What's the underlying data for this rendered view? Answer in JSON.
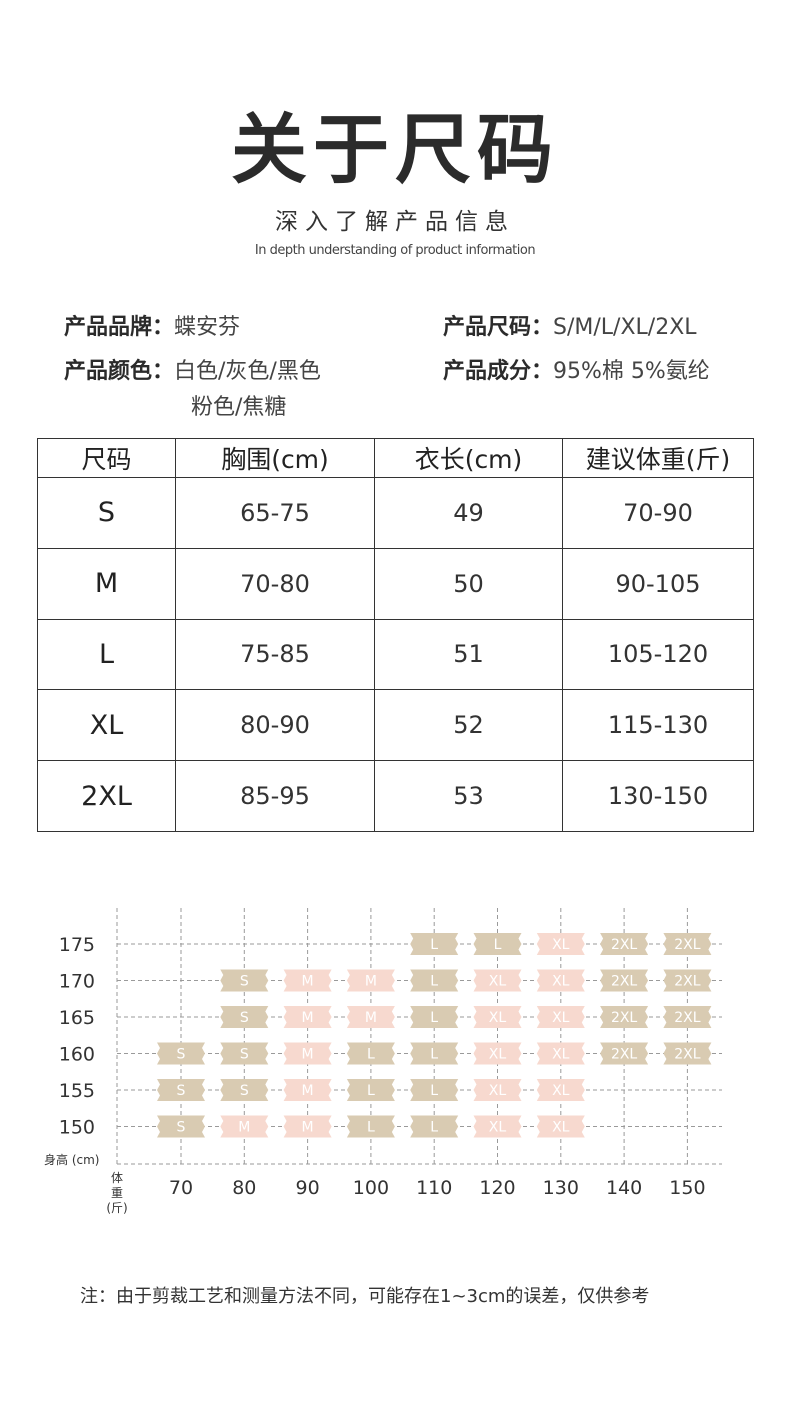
{
  "header": {
    "title": "关于尺码",
    "subtitle": "深入了解产品信息",
    "subtitle_en": "In depth understanding of product information"
  },
  "info": {
    "brand_label": "产品品牌：",
    "brand_value": "蝶安芬",
    "size_label": "产品尺码：",
    "size_value": "S/M/L/XL/2XL",
    "color_label": "产品颜色：",
    "color_value_line1": "白色/灰色/黑色",
    "color_value_line2": "粉色/焦糖",
    "material_label": "产品成分：",
    "material_value": "95%棉 5%氨纶"
  },
  "size_table": {
    "headers": [
      "尺码",
      "胸围(cm)",
      "衣长(cm)",
      "建议体重(斤)"
    ],
    "rows": [
      [
        "S",
        "65-75",
        "49",
        "70-90"
      ],
      [
        "M",
        "70-80",
        "50",
        "90-105"
      ],
      [
        "L",
        "75-85",
        "51",
        "105-120"
      ],
      [
        "XL",
        "80-90",
        "52",
        "115-130"
      ],
      [
        "2XL",
        "85-95",
        "53",
        "130-150"
      ]
    ]
  },
  "chart_data": {
    "type": "table",
    "title": "",
    "ylabel": "身高 (cm)",
    "xlabel": "体重(斤)",
    "xlabel_lines": [
      "体",
      "重",
      "(斤)"
    ],
    "x": [
      70,
      80,
      90,
      100,
      110,
      120,
      130,
      140,
      150
    ],
    "y": [
      175,
      170,
      165,
      160,
      155,
      150
    ],
    "grid": true,
    "colors": {
      "S": "#d9cbb2",
      "M": "#f7d9cf",
      "L": "#d9cbb2",
      "XL": "#f7d9cf",
      "2XL": "#d9cbb2"
    },
    "cells": [
      {
        "h": 175,
        "w": 110,
        "size": "L"
      },
      {
        "h": 175,
        "w": 120,
        "size": "L"
      },
      {
        "h": 175,
        "w": 130,
        "size": "XL"
      },
      {
        "h": 175,
        "w": 140,
        "size": "2XL"
      },
      {
        "h": 175,
        "w": 150,
        "size": "2XL"
      },
      {
        "h": 170,
        "w": 80,
        "size": "S"
      },
      {
        "h": 170,
        "w": 90,
        "size": "M"
      },
      {
        "h": 170,
        "w": 100,
        "size": "M"
      },
      {
        "h": 170,
        "w": 110,
        "size": "L"
      },
      {
        "h": 170,
        "w": 120,
        "size": "XL"
      },
      {
        "h": 170,
        "w": 130,
        "size": "XL"
      },
      {
        "h": 170,
        "w": 140,
        "size": "2XL"
      },
      {
        "h": 170,
        "w": 150,
        "size": "2XL"
      },
      {
        "h": 165,
        "w": 80,
        "size": "S"
      },
      {
        "h": 165,
        "w": 90,
        "size": "M"
      },
      {
        "h": 165,
        "w": 100,
        "size": "M"
      },
      {
        "h": 165,
        "w": 110,
        "size": "L"
      },
      {
        "h": 165,
        "w": 120,
        "size": "XL"
      },
      {
        "h": 165,
        "w": 130,
        "size": "XL"
      },
      {
        "h": 165,
        "w": 140,
        "size": "2XL"
      },
      {
        "h": 165,
        "w": 150,
        "size": "2XL"
      },
      {
        "h": 160,
        "w": 70,
        "size": "S"
      },
      {
        "h": 160,
        "w": 80,
        "size": "S"
      },
      {
        "h": 160,
        "w": 90,
        "size": "M"
      },
      {
        "h": 160,
        "w": 100,
        "size": "L"
      },
      {
        "h": 160,
        "w": 110,
        "size": "L"
      },
      {
        "h": 160,
        "w": 120,
        "size": "XL"
      },
      {
        "h": 160,
        "w": 130,
        "size": "XL"
      },
      {
        "h": 160,
        "w": 140,
        "size": "2XL"
      },
      {
        "h": 160,
        "w": 150,
        "size": "2XL"
      },
      {
        "h": 155,
        "w": 70,
        "size": "S"
      },
      {
        "h": 155,
        "w": 80,
        "size": "S"
      },
      {
        "h": 155,
        "w": 90,
        "size": "M"
      },
      {
        "h": 155,
        "w": 100,
        "size": "L"
      },
      {
        "h": 155,
        "w": 110,
        "size": "L"
      },
      {
        "h": 155,
        "w": 120,
        "size": "XL"
      },
      {
        "h": 155,
        "w": 130,
        "size": "XL"
      },
      {
        "h": 150,
        "w": 70,
        "size": "S"
      },
      {
        "h": 150,
        "w": 80,
        "size": "M"
      },
      {
        "h": 150,
        "w": 90,
        "size": "M"
      },
      {
        "h": 150,
        "w": 100,
        "size": "L"
      },
      {
        "h": 150,
        "w": 110,
        "size": "L"
      },
      {
        "h": 150,
        "w": 120,
        "size": "XL"
      },
      {
        "h": 150,
        "w": 130,
        "size": "XL"
      }
    ]
  },
  "footer": {
    "note": "注：由于剪裁工艺和测量方法不同，可能存在1~3cm的误差，仅供参考"
  }
}
